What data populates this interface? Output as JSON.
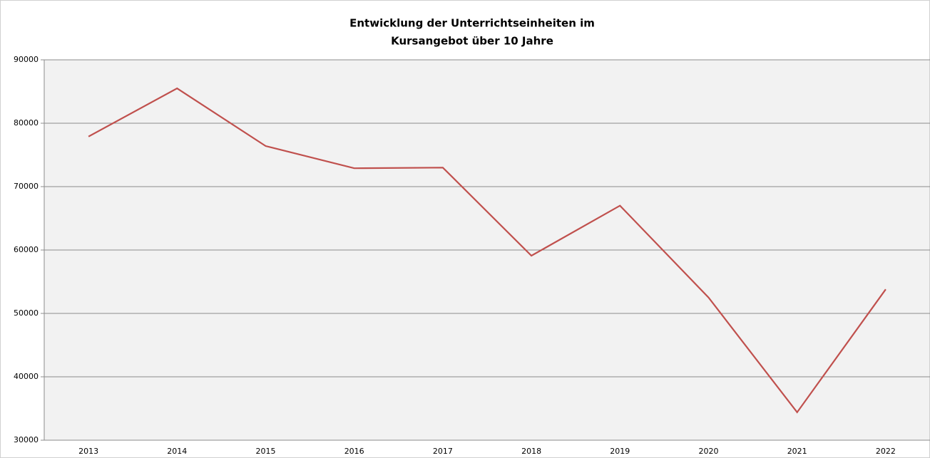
{
  "chart_data": {
    "type": "line",
    "title": [
      "Entwicklung der Unterrichtseinheiten im",
      "Kursangebot über 10 Jahre"
    ],
    "categories": [
      "2013",
      "2014",
      "2015",
      "2016",
      "2017",
      "2018",
      "2019",
      "2020",
      "2021",
      "2022"
    ],
    "values": [
      77900,
      85500,
      76400,
      72900,
      73000,
      59100,
      67000,
      52500,
      34400,
      53800
    ],
    "color": "#c0504d",
    "ylim": [
      30000,
      90000
    ],
    "yticks": [
      30000,
      40000,
      50000,
      60000,
      70000,
      80000,
      90000
    ],
    "grid": true
  }
}
